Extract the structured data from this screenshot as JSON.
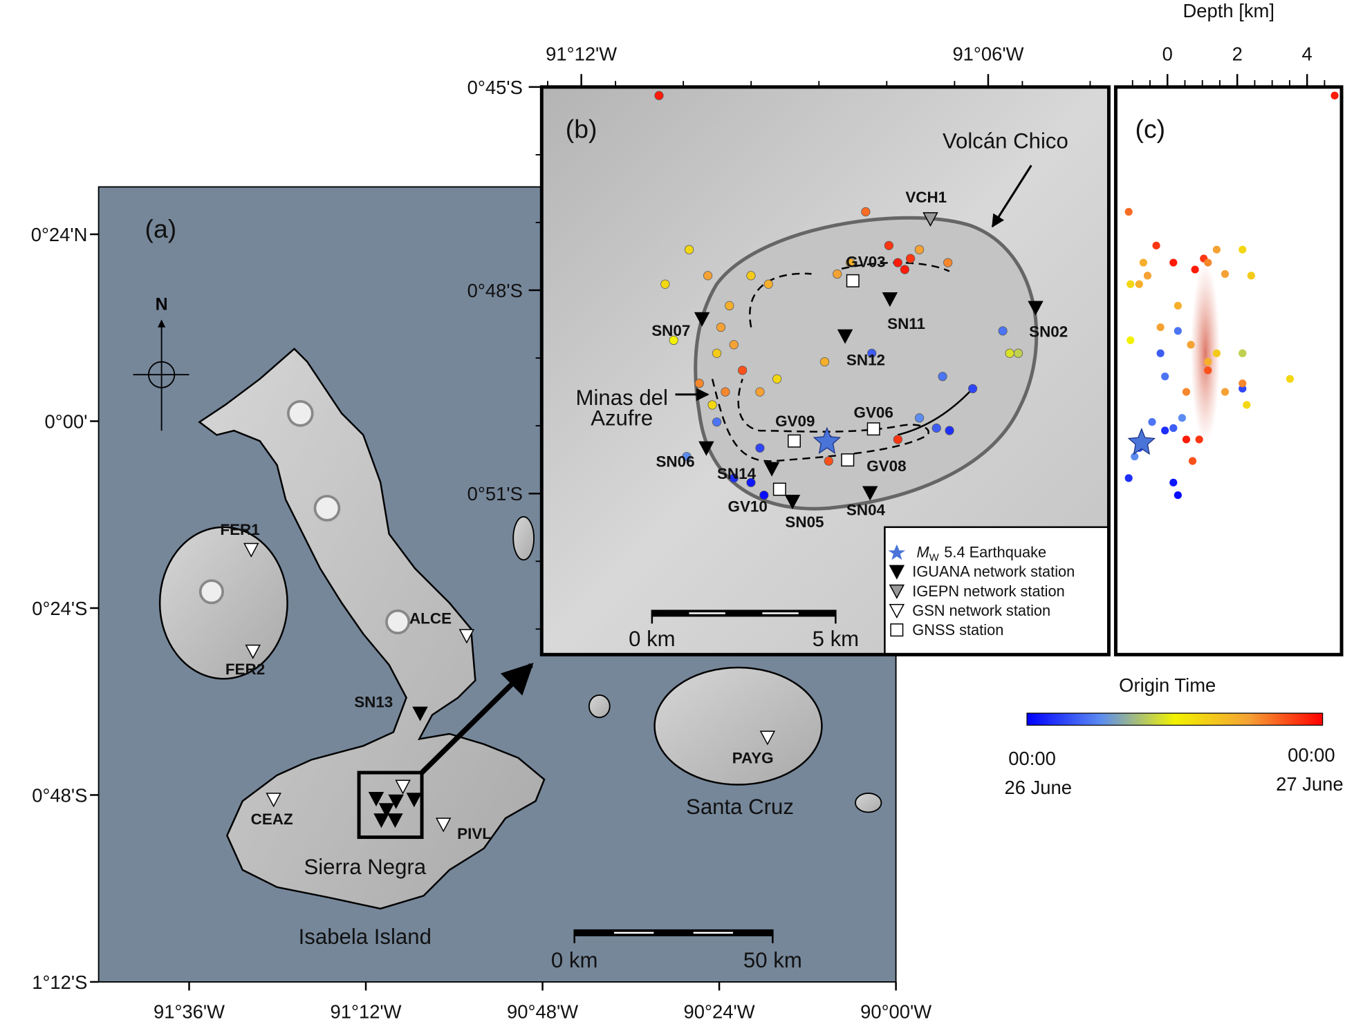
{
  "panel_a": {
    "label": "(a)",
    "north": "N",
    "xticks": [
      {
        "value": -91.6,
        "label": "91°36'W"
      },
      {
        "value": -91.2,
        "label": "91°12'W"
      },
      {
        "value": -90.8,
        "label": "90°48'W"
      },
      {
        "value": -90.4,
        "label": "90°24'W"
      },
      {
        "value": -90.0,
        "label": "90°00'W"
      }
    ],
    "yticks": [
      {
        "value": 0.4,
        "label": "0°24'N"
      },
      {
        "value": 0.0,
        "label": "0°00'"
      },
      {
        "value": -0.4,
        "label": "0°24'S"
      },
      {
        "value": -0.8,
        "label": "0°48'S"
      },
      {
        "value": -1.2,
        "label": "1°12'S"
      }
    ],
    "stations": [
      "FER1",
      "FER2",
      "ALCE",
      "SN13",
      "CEAZ",
      "PIVL",
      "PAYG"
    ],
    "places": [
      "Sierra Negra",
      "Isabela Island",
      "Santa Cruz"
    ],
    "scale": [
      "0 km",
      "50 km"
    ]
  },
  "panel_b": {
    "label": "(b)",
    "xticks": [
      {
        "value": -91.2,
        "label": "91°12'W"
      },
      {
        "value": -91.1,
        "label": "91°06'W"
      }
    ],
    "yticks": [
      {
        "value": -0.75,
        "label": "0°45'S"
      },
      {
        "value": -0.8,
        "label": "0°48'S"
      },
      {
        "value": -0.85,
        "label": "0°51'S"
      }
    ],
    "stations": [
      "SN07",
      "SN11",
      "SN02",
      "SN12",
      "VCH1",
      "GV03",
      "GV09",
      "GV06",
      "GV08",
      "SN06",
      "SN14",
      "GV10",
      "SN05",
      "SN04"
    ],
    "annotations": {
      "volcan_chico": "Volcán Chico",
      "minas": [
        "Minas del",
        "Azufre"
      ]
    },
    "scale": [
      "0 km",
      "5 km"
    ],
    "legend": [
      {
        "symbol": "M",
        "subscript": "W",
        "label": "5.4 Earthquake"
      },
      {
        "label": "IGUANA network station"
      },
      {
        "label": "IGEPN network station"
      },
      {
        "label": "GSN network station"
      },
      {
        "label": "GNSS station"
      }
    ]
  },
  "panel_c": {
    "label": "(c)",
    "xlabel": "Depth [km]",
    "xticks": [
      0,
      2,
      4
    ]
  },
  "colorbar": {
    "title": "Origin Time",
    "start": [
      "00:00",
      "26 June"
    ],
    "end": [
      "00:00",
      "27 June"
    ],
    "colors": [
      "#0000ff",
      "#5c8cf0",
      "#f2f200",
      "#f5a235",
      "#ff0000"
    ]
  },
  "events": [
    {
      "lon": -91.1809,
      "lat": -0.7521,
      "depth": 4.79,
      "hour": 23
    },
    {
      "lon": -91.1301,
      "lat": -0.7807,
      "depth": -1.11,
      "hour": 20
    },
    {
      "lon": -91.1222,
      "lat": -0.7932,
      "depth": 0.17,
      "hour": 23
    },
    {
      "lon": -91.1205,
      "lat": -0.7949,
      "depth": 0.79,
      "hour": 23
    },
    {
      "lon": -91.1191,
      "lat": -0.7922,
      "depth": 1.04,
      "hour": 22
    },
    {
      "lon": -91.1244,
      "lat": -0.789,
      "depth": -0.32,
      "hour": 22
    },
    {
      "lon": -91.1099,
      "lat": -0.7932,
      "depth": 1.16,
      "hour": 19
    },
    {
      "lon": -91.1371,
      "lat": -0.796,
      "depth": 1.65,
      "hour": 18
    },
    {
      "lon": -91.1735,
      "lat": -0.79,
      "depth": 2.15,
      "hour": 14
    },
    {
      "lon": -91.1689,
      "lat": -0.7964,
      "depth": -0.57,
      "hour": 18
    },
    {
      "lon": -91.1794,
      "lat": -0.7985,
      "depth": -1.06,
      "hour": 14
    },
    {
      "lon": -91.1636,
      "lat": -0.8038,
      "depth": 0.3,
      "hour": 17
    },
    {
      "lon": -91.1657,
      "lat": -0.8091,
      "depth": -0.2,
      "hour": 18
    },
    {
      "lon": -91.1625,
      "lat": -0.8134,
      "depth": 0.67,
      "hour": 18
    },
    {
      "lon": -91.1667,
      "lat": -0.8155,
      "depth": 1.41,
      "hour": 15
    },
    {
      "lon": -91.1604,
      "lat": -0.8197,
      "depth": 1.16,
      "hour": 21
    },
    {
      "lon": -91.1646,
      "lat": -0.825,
      "depth": 0.54,
      "hour": 19
    },
    {
      "lon": -91.1678,
      "lat": -0.8282,
      "depth": 2.27,
      "hour": 14
    },
    {
      "lon": -91.1583,
      "lat": -0.7964,
      "depth": 2.4,
      "hour": 15
    },
    {
      "lon": -91.154,
      "lat": -0.7985,
      "depth": -0.81,
      "hour": 17
    },
    {
      "lon": -91.1773,
      "lat": -0.8123,
      "depth": -1.06,
      "hour": 12
    },
    {
      "lon": -91.0964,
      "lat": -0.81,
      "depth": 0.3,
      "hour": 5
    },
    {
      "lon": -91.0947,
      "lat": -0.8155,
      "depth": 2.15,
      "hour": 11
    },
    {
      "lon": -91.1038,
      "lat": -0.8242,
      "depth": 2.15,
      "hour": 3
    },
    {
      "lon": -91.1127,
      "lat": -0.8339,
      "depth": 0.17,
      "hour": 4
    },
    {
      "lon": -91.1095,
      "lat": -0.8345,
      "depth": -0.07,
      "hour": 2
    },
    {
      "lon": -91.1169,
      "lat": -0.8314,
      "depth": 0.42,
      "hour": 6
    },
    {
      "lon": -91.1222,
      "lat": -0.8367,
      "depth": 0.91,
      "hour": 22
    },
    {
      "lon": -91.1392,
      "lat": -0.8367,
      "depth": 0.54,
      "hour": 23
    },
    {
      "lon": -91.1561,
      "lat": -0.8388,
      "depth": -0.81,
      "hour": 3
    },
    {
      "lon": -91.1583,
      "lat": -0.8473,
      "depth": 0.17,
      "hour": 1
    },
    {
      "lon": -91.1625,
      "lat": -0.8462,
      "depth": -1.11,
      "hour": 2
    },
    {
      "lon": -91.1551,
      "lat": -0.8504,
      "depth": 0.3,
      "hour": 0.5
    },
    {
      "lon": -91.1667,
      "lat": -0.8324,
      "depth": -0.44,
      "hour": 5
    },
    {
      "lon": -91.1741,
      "lat": -0.8409,
      "depth": -0.94,
      "hour": 6
    },
    {
      "lon": -91.1392,
      "lat": -0.842,
      "depth": 0.72,
      "hour": 21
    },
    {
      "lon": -91.1286,
      "lat": -0.8155,
      "depth": -0.2,
      "hour": 4
    },
    {
      "lon": -91.1112,
      "lat": -0.8212,
      "depth": -0.07,
      "hour": 5
    },
    {
      "lon": -91.0926,
      "lat": -0.8155,
      "depth": 2.15,
      "hour": 10
    },
    {
      "lon": -91.1519,
      "lat": -0.8218,
      "depth": 3.51,
      "hour": 14
    },
    {
      "lon": -91.1561,
      "lat": -0.825,
      "depth": 1.65,
      "hour": 18
    },
    {
      "lon": -91.171,
      "lat": -0.8229,
      "depth": 2.15,
      "hour": 19
    },
    {
      "lon": -91.1169,
      "lat": -0.79,
      "depth": 1.41,
      "hour": 18
    },
    {
      "lon": -91.1339,
      "lat": -0.7932,
      "depth": -0.69,
      "hour": 17
    },
    {
      "lon": -91.1402,
      "lat": -0.8176,
      "depth": 1.16,
      "hour": 17
    }
  ]
}
